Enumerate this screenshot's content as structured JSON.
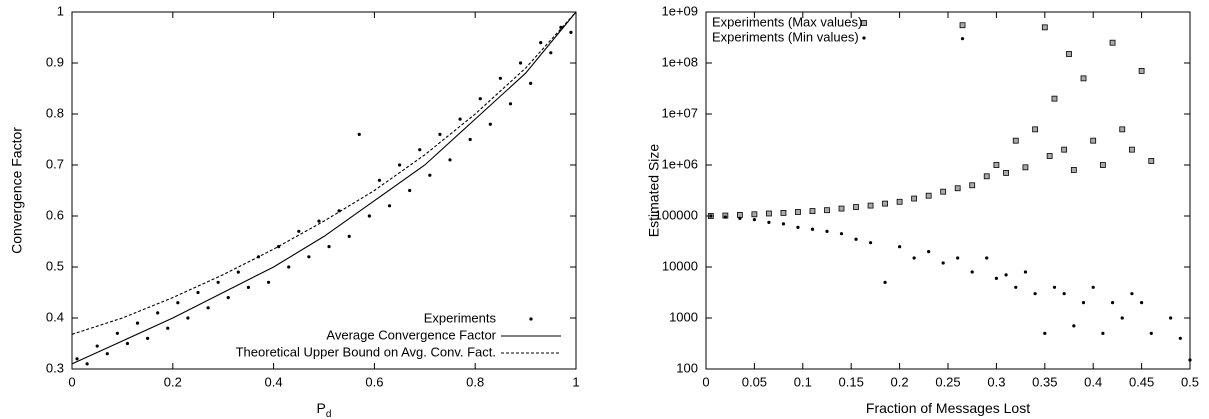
{
  "chart_data": [
    {
      "type": "scatter",
      "ylabel": "Convergence Factor",
      "xlabel": "P",
      "xlabel_sub": "d",
      "xlim": [
        0,
        1
      ],
      "ylim": [
        0.3,
        1
      ],
      "xticks": [
        0,
        0.2,
        0.4,
        0.6,
        0.8,
        1
      ],
      "yticks": [
        0.3,
        0.4,
        0.5,
        0.6,
        0.7,
        0.8,
        0.9,
        1
      ],
      "legend": "lower right",
      "series": [
        {
          "name": "Experiments",
          "style": "dots",
          "color": "#000000",
          "x": [
            0.01,
            0.03,
            0.05,
            0.07,
            0.09,
            0.11,
            0.13,
            0.15,
            0.17,
            0.19,
            0.21,
            0.23,
            0.25,
            0.27,
            0.29,
            0.31,
            0.33,
            0.35,
            0.37,
            0.39,
            0.41,
            0.43,
            0.45,
            0.47,
            0.49,
            0.51,
            0.53,
            0.55,
            0.57,
            0.59,
            0.61,
            0.63,
            0.65,
            0.67,
            0.69,
            0.71,
            0.73,
            0.75,
            0.77,
            0.79,
            0.81,
            0.83,
            0.85,
            0.87,
            0.89,
            0.91,
            0.93,
            0.95,
            0.97,
            0.99
          ],
          "values": [
            0.32,
            0.31,
            0.345,
            0.33,
            0.37,
            0.35,
            0.39,
            0.36,
            0.41,
            0.38,
            0.43,
            0.4,
            0.45,
            0.42,
            0.47,
            0.44,
            0.49,
            0.46,
            0.52,
            0.47,
            0.54,
            0.5,
            0.57,
            0.52,
            0.59,
            0.54,
            0.61,
            0.56,
            0.76,
            0.6,
            0.67,
            0.62,
            0.7,
            0.65,
            0.73,
            0.68,
            0.76,
            0.71,
            0.79,
            0.75,
            0.83,
            0.78,
            0.87,
            0.82,
            0.9,
            0.86,
            0.94,
            0.92,
            0.97,
            0.96
          ]
        },
        {
          "name": "Average Convergence Factor",
          "style": "line",
          "color": "#000000",
          "x": [
            0,
            0.1,
            0.2,
            0.3,
            0.4,
            0.5,
            0.6,
            0.7,
            0.8,
            0.9,
            1
          ],
          "values": [
            0.31,
            0.355,
            0.4,
            0.45,
            0.5,
            0.56,
            0.63,
            0.7,
            0.79,
            0.88,
            1.0
          ]
        },
        {
          "name": "Theoretical Upper Bound on Avg. Conv. Fact.",
          "style": "dashed",
          "color": "#000000",
          "x": [
            0,
            0.1,
            0.2,
            0.3,
            0.4,
            0.5,
            0.6,
            0.7,
            0.8,
            0.9,
            1
          ],
          "values": [
            0.368,
            0.4,
            0.44,
            0.485,
            0.535,
            0.59,
            0.65,
            0.72,
            0.8,
            0.89,
            1.0
          ]
        }
      ]
    },
    {
      "type": "scatter",
      "ylabel": "Estimated Size",
      "xlabel": "Fraction of Messages Lost",
      "xlim": [
        0,
        0.5
      ],
      "ylim": [
        100,
        1000000000
      ],
      "ylog": true,
      "xticks": [
        0,
        0.05,
        0.1,
        0.15,
        0.2,
        0.25,
        0.3,
        0.35,
        0.4,
        0.45,
        0.5
      ],
      "yticks": [
        100,
        1000,
        10000,
        100000,
        {
          "value": 1000000,
          "label": "1e+06"
        },
        {
          "value": 10000000,
          "label": "1e+07"
        },
        {
          "value": 100000000,
          "label": "1e+08"
        },
        {
          "value": 1000000000,
          "label": "1e+09"
        }
      ],
      "legend": "upper left",
      "series": [
        {
          "name": "Experiments (Max values)",
          "style": "squares",
          "color": "#000000",
          "x": [
            0.005,
            0.02,
            0.035,
            0.05,
            0.065,
            0.08,
            0.095,
            0.11,
            0.125,
            0.14,
            0.155,
            0.17,
            0.185,
            0.2,
            0.215,
            0.23,
            0.245,
            0.26,
            0.265,
            0.275,
            0.29,
            0.3,
            0.31,
            0.32,
            0.33,
            0.34,
            0.35,
            0.355,
            0.36,
            0.37,
            0.375,
            0.38,
            0.39,
            0.4,
            0.41,
            0.42,
            0.43,
            0.44,
            0.45,
            0.46
          ],
          "values": [
            100000,
            102000,
            105000,
            108000,
            112000,
            115000,
            120000,
            125000,
            130000,
            140000,
            150000,
            160000,
            175000,
            190000,
            220000,
            250000,
            300000,
            350000,
            550000000,
            400000,
            600000,
            1000000,
            700000,
            3000000,
            900000,
            5000000,
            500000000,
            1500000,
            20000000,
            2000000,
            150000000,
            800000,
            50000000,
            3000000,
            1000000,
            250000000,
            5000000,
            2000000,
            70000000,
            1200000
          ]
        },
        {
          "name": "Experiments (Min values)",
          "style": "dots",
          "color": "#000000",
          "x": [
            0.005,
            0.02,
            0.035,
            0.05,
            0.065,
            0.08,
            0.095,
            0.11,
            0.125,
            0.14,
            0.155,
            0.17,
            0.185,
            0.2,
            0.215,
            0.23,
            0.245,
            0.26,
            0.265,
            0.275,
            0.29,
            0.3,
            0.31,
            0.32,
            0.33,
            0.34,
            0.35,
            0.36,
            0.37,
            0.38,
            0.39,
            0.4,
            0.41,
            0.42,
            0.43,
            0.44,
            0.45,
            0.46,
            0.48,
            0.49,
            0.5
          ],
          "values": [
            100000,
            95000,
            90000,
            85000,
            75000,
            70000,
            60000,
            55000,
            50000,
            45000,
            35000,
            30000,
            5000,
            25000,
            15000,
            20000,
            12000,
            15000,
            300000000,
            8000,
            15000,
            6000,
            7000,
            4000,
            8000,
            3000,
            500,
            4000,
            3000,
            700,
            2000,
            4000,
            500,
            2000,
            1000,
            3000,
            2000,
            500,
            1000,
            400,
            150
          ]
        }
      ]
    }
  ]
}
